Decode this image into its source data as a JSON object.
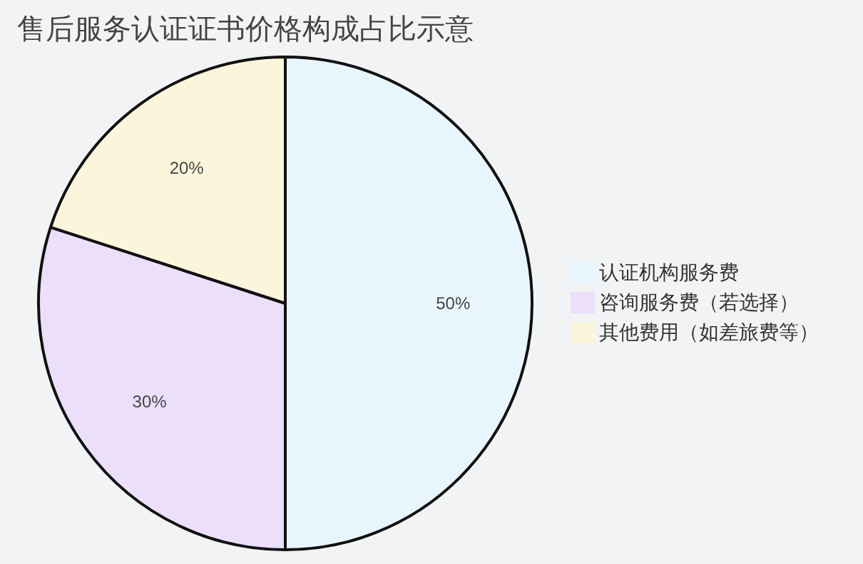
{
  "chart_data": {
    "type": "pie",
    "title": "售后服务认证证书价格构成占比示意",
    "categories": [
      "认证机构服务费",
      "咨询服务费（若选择）",
      "其他费用（如差旅费等）"
    ],
    "values": [
      50,
      30,
      20
    ],
    "colors": [
      "#e8f5fd",
      "#ebdffa",
      "#fbf5dc"
    ],
    "value_labels": [
      "50%",
      "30%",
      "20%"
    ],
    "legend": "right"
  }
}
